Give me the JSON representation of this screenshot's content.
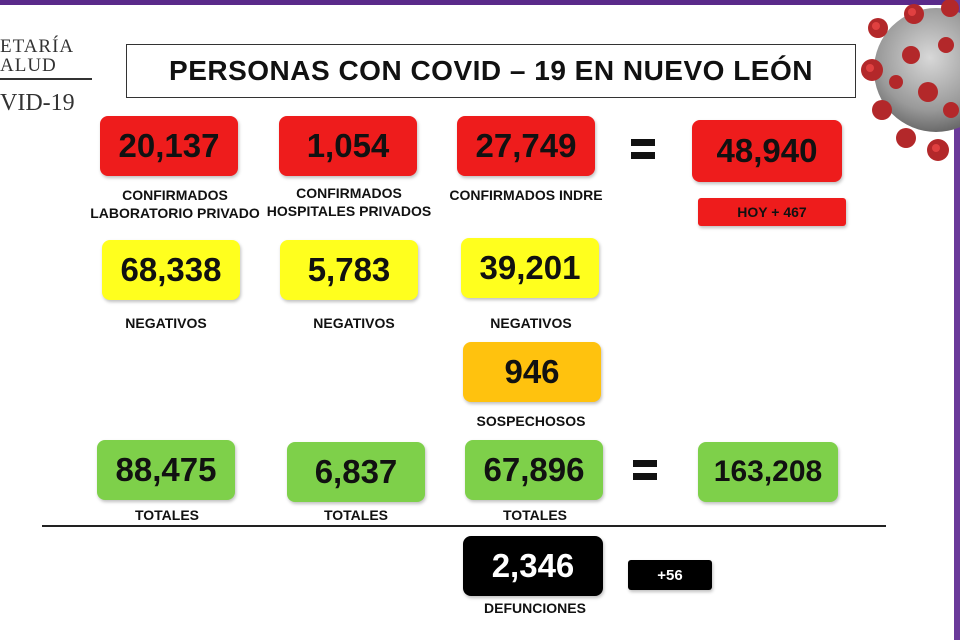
{
  "logo": {
    "line1": "ETARÍA",
    "line2": "ALUD",
    "line3": "VID-19"
  },
  "title": "PERSONAS CON COVID – 19 EN NUEVO LEÓN",
  "confirmed": [
    {
      "value": "20,137",
      "label1": "CONFIRMADOS",
      "label2": "LABORATORIO PRIVADO"
    },
    {
      "value": "1,054",
      "label1": "CONFIRMADOS",
      "label2": "HOSPITALES PRIVADOS"
    },
    {
      "value": "27,749",
      "label1": "CONFIRMADOS INDRE",
      "label2": ""
    }
  ],
  "confirmed_total": {
    "value": "48,940",
    "today": "HOY + 467"
  },
  "negatives": [
    {
      "value": "68,338",
      "label": "NEGATIVOS"
    },
    {
      "value": "5,783",
      "label": "NEGATIVOS"
    },
    {
      "value": "39,201",
      "label": "NEGATIVOS"
    }
  ],
  "suspects": {
    "value": "946",
    "label": "SOSPECHOSOS"
  },
  "totals": [
    {
      "value": "88,475",
      "label": "TOTALES"
    },
    {
      "value": "6,837",
      "label": "TOTALES"
    },
    {
      "value": "67,896",
      "label": "TOTALES"
    }
  ],
  "grand_total": {
    "value": "163,208"
  },
  "deaths": {
    "value": "2,346",
    "label": "DEFUNCIONES",
    "today": "+56"
  },
  "colors": {
    "red": "#ee1c1c",
    "yellow": "#ffff1e",
    "orange": "#ffc20e",
    "green": "#7ed04a",
    "black": "#000000",
    "frame": "#5a2a8a"
  }
}
